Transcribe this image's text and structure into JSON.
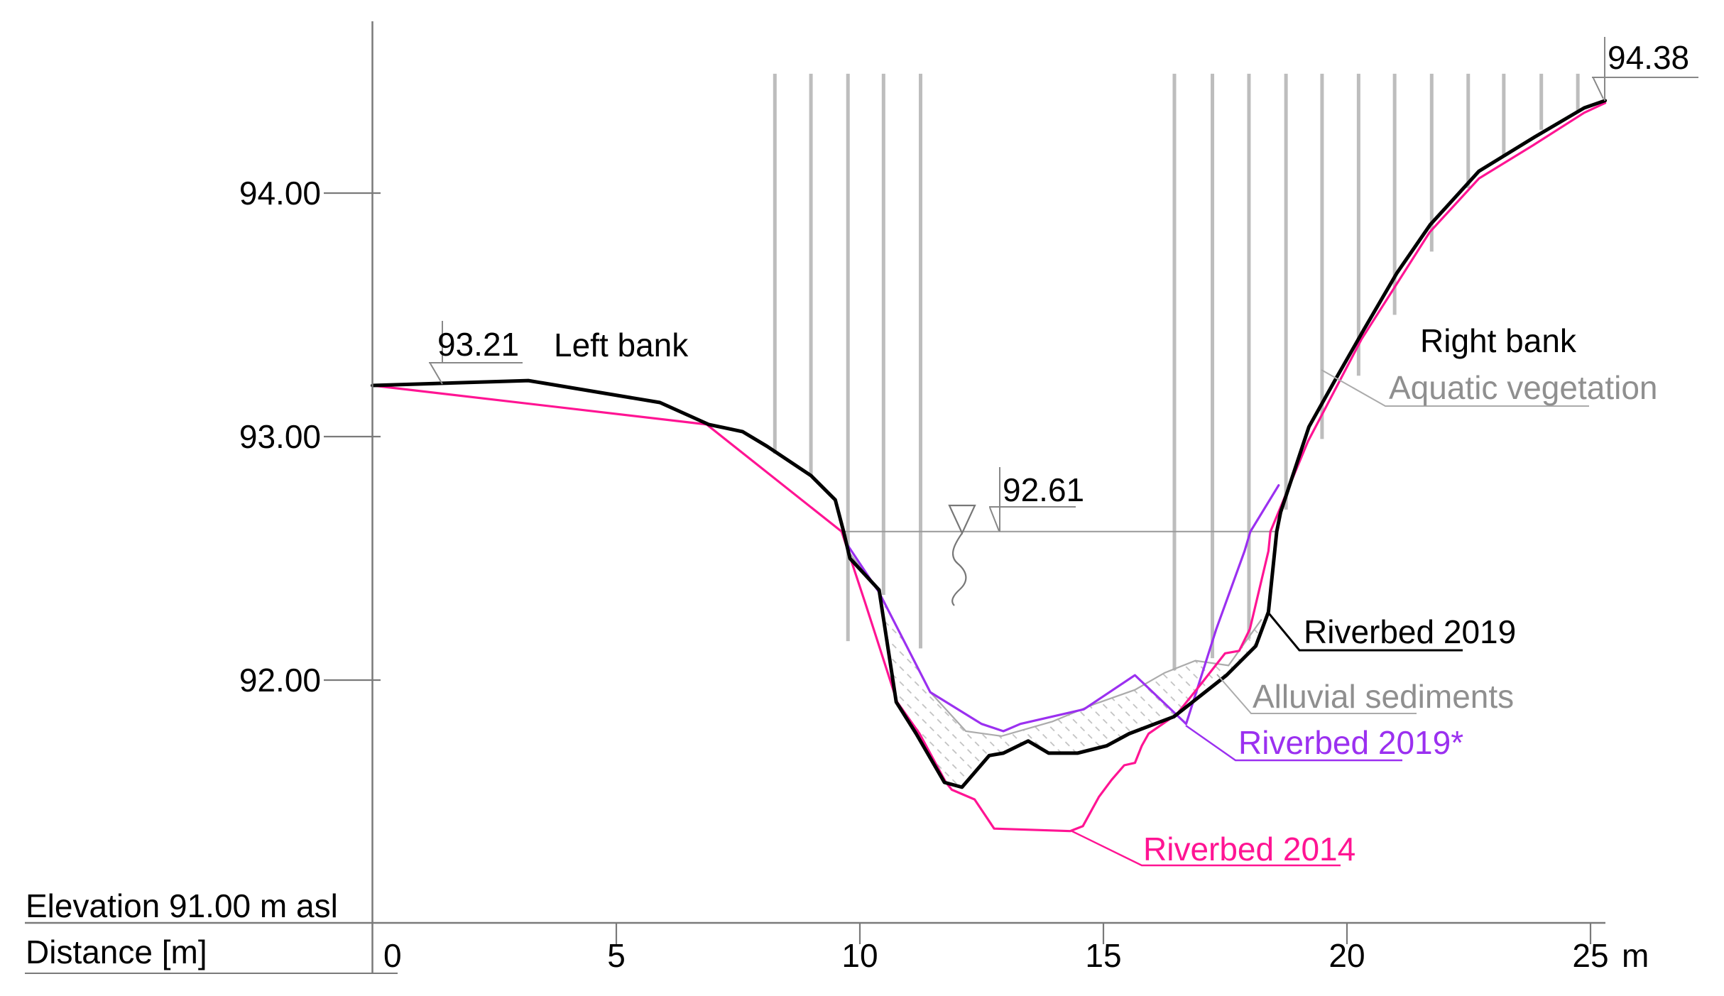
{
  "annotations": {
    "left_bank": "Left bank",
    "right_bank": "Right bank",
    "aquatic_vegetation": "Aquatic vegetation",
    "riverbed_2019": "Riverbed 2019",
    "alluvial_sediments": "Alluvial sediments",
    "riverbed_2019_star": "Riverbed 2019*",
    "riverbed_2014": "Riverbed 2014",
    "elevation_note": "Elevation 91.00 m asl",
    "distance_label": "Distance [m]",
    "x_unit": "m",
    "marker_left_bank_level": "93.21",
    "marker_water_level": "92.61",
    "marker_right_bank_level": "94.38"
  },
  "colors": {
    "riverbed_2019": "#000000",
    "riverbed_2014": "#ff1493",
    "riverbed_2019_star": "#9b30f0",
    "sediment_gray": "#ababab",
    "vegetation_gray": "#bdbdbd",
    "annotation_gray": "#8f8f8f",
    "axis_gray": "#7a7a7a"
  },
  "chart_data": {
    "type": "line",
    "xlabel": "Distance [m]",
    "ylabel": "Elevation 91.00 m asl",
    "xlim": [
      0,
      25.3
    ],
    "ylim": [
      91.0,
      94.5
    ],
    "grid": false,
    "x_tick_labels": [
      "0",
      "5",
      "10",
      "15",
      "20",
      "25"
    ],
    "x_ticks": [
      0,
      5,
      10,
      15,
      20,
      25
    ],
    "y_tick_labels": [
      "94.00",
      "93.00",
      "92.00"
    ],
    "y_ticks": [
      94.0,
      93.0,
      92.0
    ],
    "water_level": 92.61,
    "water_level_extent_m": [
      9.67,
      18.56
    ],
    "left_bank_level": 93.21,
    "right_bank_level": 94.38,
    "series": [
      {
        "name": "Riverbed 2019",
        "color": "#000000",
        "points": [
          [
            0,
            93.21
          ],
          [
            3.2,
            93.23
          ],
          [
            5.9,
            93.14
          ],
          [
            6.9,
            93.05
          ],
          [
            7.6,
            93.02
          ],
          [
            8.1,
            92.96
          ],
          [
            9.0,
            92.84
          ],
          [
            9.5,
            92.74
          ],
          [
            9.67,
            92.61
          ],
          [
            9.8,
            92.5
          ],
          [
            10.4,
            92.37
          ],
          [
            10.75,
            91.91
          ],
          [
            11.16,
            91.78
          ],
          [
            11.74,
            91.58
          ],
          [
            12.1,
            91.56
          ],
          [
            12.66,
            91.69
          ],
          [
            12.95,
            91.7
          ],
          [
            13.46,
            91.75
          ],
          [
            13.88,
            91.7
          ],
          [
            14.47,
            91.7
          ],
          [
            15.07,
            91.73
          ],
          [
            15.53,
            91.78
          ],
          [
            16.45,
            91.85
          ],
          [
            17.53,
            92.02
          ],
          [
            18.13,
            92.14
          ],
          [
            18.39,
            92.28
          ],
          [
            18.56,
            92.61
          ],
          [
            18.64,
            92.69
          ],
          [
            19.22,
            93.04
          ],
          [
            19.78,
            93.24
          ],
          [
            20.35,
            93.44
          ],
          [
            21.02,
            93.67
          ],
          [
            21.71,
            93.87
          ],
          [
            22.71,
            94.09
          ],
          [
            23.85,
            94.23
          ],
          [
            24.87,
            94.35
          ],
          [
            25.3,
            94.38
          ]
        ]
      },
      {
        "name": "Riverbed 2014",
        "color": "#ff1493",
        "points": [
          [
            0,
            93.21
          ],
          [
            6.86,
            93.05
          ],
          [
            9.63,
            92.61
          ],
          [
            10.11,
            92.32
          ],
          [
            10.77,
            91.91
          ],
          [
            11.23,
            91.78
          ],
          [
            11.77,
            91.58
          ],
          [
            11.89,
            91.55
          ],
          [
            12.36,
            91.51
          ],
          [
            12.76,
            91.39
          ],
          [
            14.32,
            91.38
          ],
          [
            14.58,
            91.4
          ],
          [
            14.91,
            91.52
          ],
          [
            15.17,
            91.59
          ],
          [
            15.43,
            91.65
          ],
          [
            15.65,
            91.66
          ],
          [
            15.79,
            91.73
          ],
          [
            15.93,
            91.78
          ],
          [
            16.51,
            91.86
          ],
          [
            17.03,
            91.99
          ],
          [
            17.5,
            92.11
          ],
          [
            17.79,
            92.12
          ],
          [
            18.01,
            92.21
          ],
          [
            18.39,
            92.53
          ],
          [
            18.43,
            92.61
          ],
          [
            19.2,
            92.98
          ],
          [
            20.3,
            93.4
          ],
          [
            21.7,
            93.84
          ],
          [
            22.71,
            94.06
          ],
          [
            23.85,
            94.2
          ],
          [
            24.87,
            94.33
          ],
          [
            25.3,
            94.37
          ]
        ]
      },
      {
        "name": "Riverbed 2019*",
        "color": "#9b30f0",
        "points": [
          [
            9.7,
            92.57
          ],
          [
            10.4,
            92.36
          ],
          [
            11.45,
            91.95
          ],
          [
            12.5,
            91.82
          ],
          [
            12.95,
            91.79
          ],
          [
            13.3,
            91.82
          ],
          [
            14.6,
            91.88
          ],
          [
            15.65,
            92.02
          ],
          [
            16.7,
            91.82
          ],
          [
            17.32,
            92.21
          ],
          [
            17.9,
            92.53
          ],
          [
            18.02,
            92.61
          ],
          [
            18.6,
            92.8
          ]
        ]
      },
      {
        "name": "Alluvial sediments",
        "color": "#ababab",
        "points": [
          [
            9.8,
            92.52
          ],
          [
            10.4,
            92.36
          ],
          [
            11.45,
            91.95
          ],
          [
            12.18,
            91.79
          ],
          [
            12.91,
            91.77
          ],
          [
            13.96,
            91.83
          ],
          [
            14.8,
            91.9
          ],
          [
            15.65,
            91.96
          ],
          [
            16.26,
            92.03
          ],
          [
            16.89,
            92.08
          ],
          [
            17.57,
            92.06
          ],
          [
            18.25,
            92.25
          ]
        ]
      }
    ],
    "vegetation": {
      "top_elev": 94.49,
      "left": [
        {
          "x": 8.26,
          "bottom_elev": 92.93
        },
        {
          "x": 9.0,
          "bottom_elev": 92.84
        },
        {
          "x": 9.76,
          "bottom_elev": 92.16
        },
        {
          "x": 10.49,
          "bottom_elev": 92.35
        },
        {
          "x": 11.25,
          "bottom_elev": 92.13
        }
      ],
      "right": [
        {
          "x": 16.46,
          "bottom_elev": 92.04
        },
        {
          "x": 17.24,
          "bottom_elev": 92.09
        },
        {
          "x": 17.99,
          "bottom_elev": 92.17
        },
        {
          "x": 18.75,
          "bottom_elev": 92.7
        },
        {
          "x": 19.49,
          "bottom_elev": 92.99
        },
        {
          "x": 20.24,
          "bottom_elev": 93.25
        },
        {
          "x": 20.98,
          "bottom_elev": 93.5
        },
        {
          "x": 21.74,
          "bottom_elev": 93.76
        },
        {
          "x": 22.49,
          "bottom_elev": 94.02
        },
        {
          "x": 23.22,
          "bottom_elev": 94.15
        },
        {
          "x": 23.99,
          "bottom_elev": 94.26
        },
        {
          "x": 24.74,
          "bottom_elev": 94.34
        }
      ]
    }
  }
}
